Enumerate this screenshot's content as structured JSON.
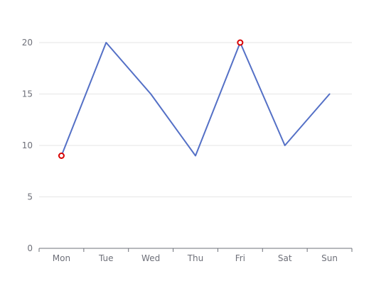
{
  "chart_data": {
    "type": "line",
    "title": "",
    "xlabel": "",
    "ylabel": "",
    "categories": [
      "Mon",
      "Tue",
      "Wed",
      "Thu",
      "Fri",
      "Sat",
      "Sun"
    ],
    "series": [
      {
        "values": [
          9,
          20,
          15,
          9,
          20,
          10,
          15
        ]
      }
    ],
    "highlighted_points": [
      {
        "category": "Mon",
        "value": 9
      },
      {
        "category": "Fri",
        "value": 20
      }
    ],
    "ylim": [
      0,
      20
    ],
    "yticks": [
      0,
      5,
      10,
      15,
      20
    ],
    "grid": "horizontal",
    "colors": {
      "line": "#5470c6",
      "highlight": "#d80000"
    }
  }
}
